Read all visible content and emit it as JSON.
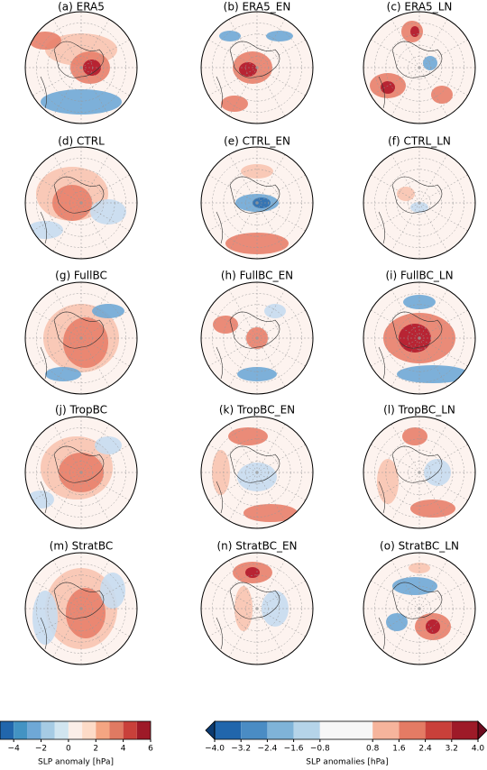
{
  "panels": [
    {
      "title": "(a) ERA5"
    },
    {
      "title": "(b) ERA5_EN"
    },
    {
      "title": "(c) ERA5_LN"
    },
    {
      "title": "(d) CTRL"
    },
    {
      "title": "(e) CTRL_EN"
    },
    {
      "title": "(f) CTRL_LN"
    },
    {
      "title": "(g) FullBC"
    },
    {
      "title": "(h) FullBC_EN"
    },
    {
      "title": "(i) FullBC_LN"
    },
    {
      "title": "(j) TropBC"
    },
    {
      "title": "(k) TropBC_EN"
    },
    {
      "title": "(l) TropBC_LN"
    },
    {
      "title": "(m) StratBC"
    },
    {
      "title": "(n) StratBC_EN"
    },
    {
      "title": "(o) StratBC_LN"
    }
  ],
  "colorbar_left": {
    "label": "SLP anomaly [hPa]",
    "lim": [
      -5,
      6
    ],
    "ticks": [
      {
        "value": -4,
        "label": "−4"
      },
      {
        "value": -2,
        "label": "−2"
      },
      0,
      2,
      4,
      6
    ],
    "colors": [
      "#2166ac",
      "#4393c3",
      "#6fa8d6",
      "#a6cbe4",
      "#d1e5f0",
      "#fbeee8",
      "#fddbc7",
      "#f4a582",
      "#e07a62",
      "#c9403a",
      "#9e1a28"
    ]
  },
  "colorbar_right": {
    "label": "SLP anomalies [hPa]",
    "lim": [
      -4,
      4
    ],
    "ticks": [
      {
        "value": -4,
        "label": "−4.0"
      },
      {
        "value": -3.2,
        "label": "−3.2"
      },
      {
        "value": -2.4,
        "label": "−2.4"
      },
      {
        "value": -1.6,
        "label": "−1.6"
      },
      {
        "value": -0.8,
        "label": "−0.8"
      },
      {
        "value": 0.8,
        "label": "0.8"
      },
      {
        "value": 1.6,
        "label": "1.6"
      },
      {
        "value": 2.4,
        "label": "2.4"
      },
      {
        "value": 3.2,
        "label": "3.2"
      },
      {
        "value": 4,
        "label": "4.0"
      }
    ],
    "edges": [
      -4,
      -3.2,
      -2.4,
      -1.6,
      -0.8,
      0.8,
      1.6,
      2.4,
      3.2,
      4
    ],
    "colors": [
      "#2166ac",
      "#4a8cc4",
      "#7fb3d8",
      "#b5d4e9",
      "#f7f7f7",
      "#f6b49c",
      "#e47b64",
      "#c9403a",
      "#9e1a28"
    ],
    "extend_colors": [
      "#0b3a70",
      "#6e0b1f"
    ]
  }
}
